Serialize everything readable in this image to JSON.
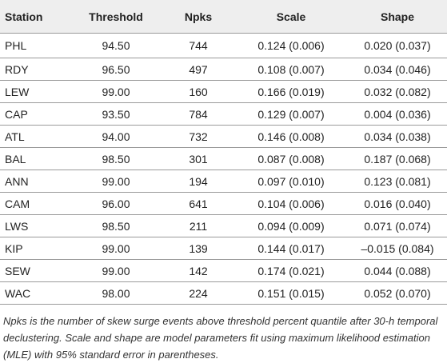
{
  "table": {
    "headers": [
      "Station",
      "Threshold",
      "Npks",
      "Scale",
      "Shape"
    ],
    "rows": [
      [
        "PHL",
        "94.50",
        "744",
        "0.124 (0.006)",
        "0.020 (0.037)"
      ],
      [
        "RDY",
        "96.50",
        "497",
        "0.108 (0.007)",
        "0.034 (0.046)"
      ],
      [
        "LEW",
        "99.00",
        "160",
        "0.166 (0.019)",
        "0.032 (0.082)"
      ],
      [
        "CAP",
        "93.50",
        "784",
        "0.129 (0.007)",
        "0.004 (0.036)"
      ],
      [
        "ATL",
        "94.00",
        "732",
        "0.146 (0.008)",
        "0.034 (0.038)"
      ],
      [
        "BAL",
        "98.50",
        "301",
        "0.087 (0.008)",
        "0.187 (0.068)"
      ],
      [
        "ANN",
        "99.00",
        "194",
        "0.097 (0.010)",
        "0.123 (0.081)"
      ],
      [
        "CAM",
        "96.00",
        "641",
        "0.104 (0.006)",
        "0.016 (0.040)"
      ],
      [
        "LWS",
        "98.50",
        "211",
        "0.094 (0.009)",
        "0.071 (0.074)"
      ],
      [
        "KIP",
        "99.00",
        "139",
        "0.144 (0.017)",
        "–0.015 (0.084)"
      ],
      [
        "SEW",
        "99.00",
        "142",
        "0.174 (0.021)",
        "0.044 (0.088)"
      ],
      [
        "WAC",
        "98.00",
        "224",
        "0.151 (0.015)",
        "0.052 (0.070)"
      ]
    ]
  },
  "footnote": "Npks is the number of skew surge events above threshold percent quantile after 30-h temporal declustering. Scale and shape are model parameters fit using maximum likelihood estimation (MLE) with 95% standard error in parentheses."
}
